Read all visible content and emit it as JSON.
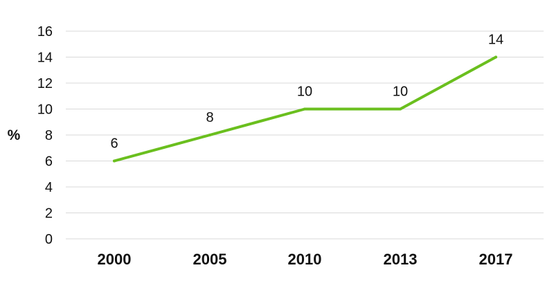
{
  "chart_data": {
    "type": "line",
    "title": "",
    "xlabel": "",
    "ylabel": "%",
    "categories": [
      "2000",
      "2005",
      "2010",
      "2013",
      "2017"
    ],
    "series": [
      {
        "values": [
          6,
          8,
          10,
          10,
          14
        ],
        "color": "#6abf1e"
      }
    ],
    "data_labels": [
      "6",
      "8",
      "10",
      "10",
      "14"
    ],
    "yticks": [
      "0",
      "2",
      "4",
      "6",
      "8",
      "10",
      "12",
      "14",
      "16"
    ],
    "ylim": [
      0,
      16
    ],
    "grid": true,
    "gridline_color": "#d9d9d9",
    "legend": "none"
  }
}
